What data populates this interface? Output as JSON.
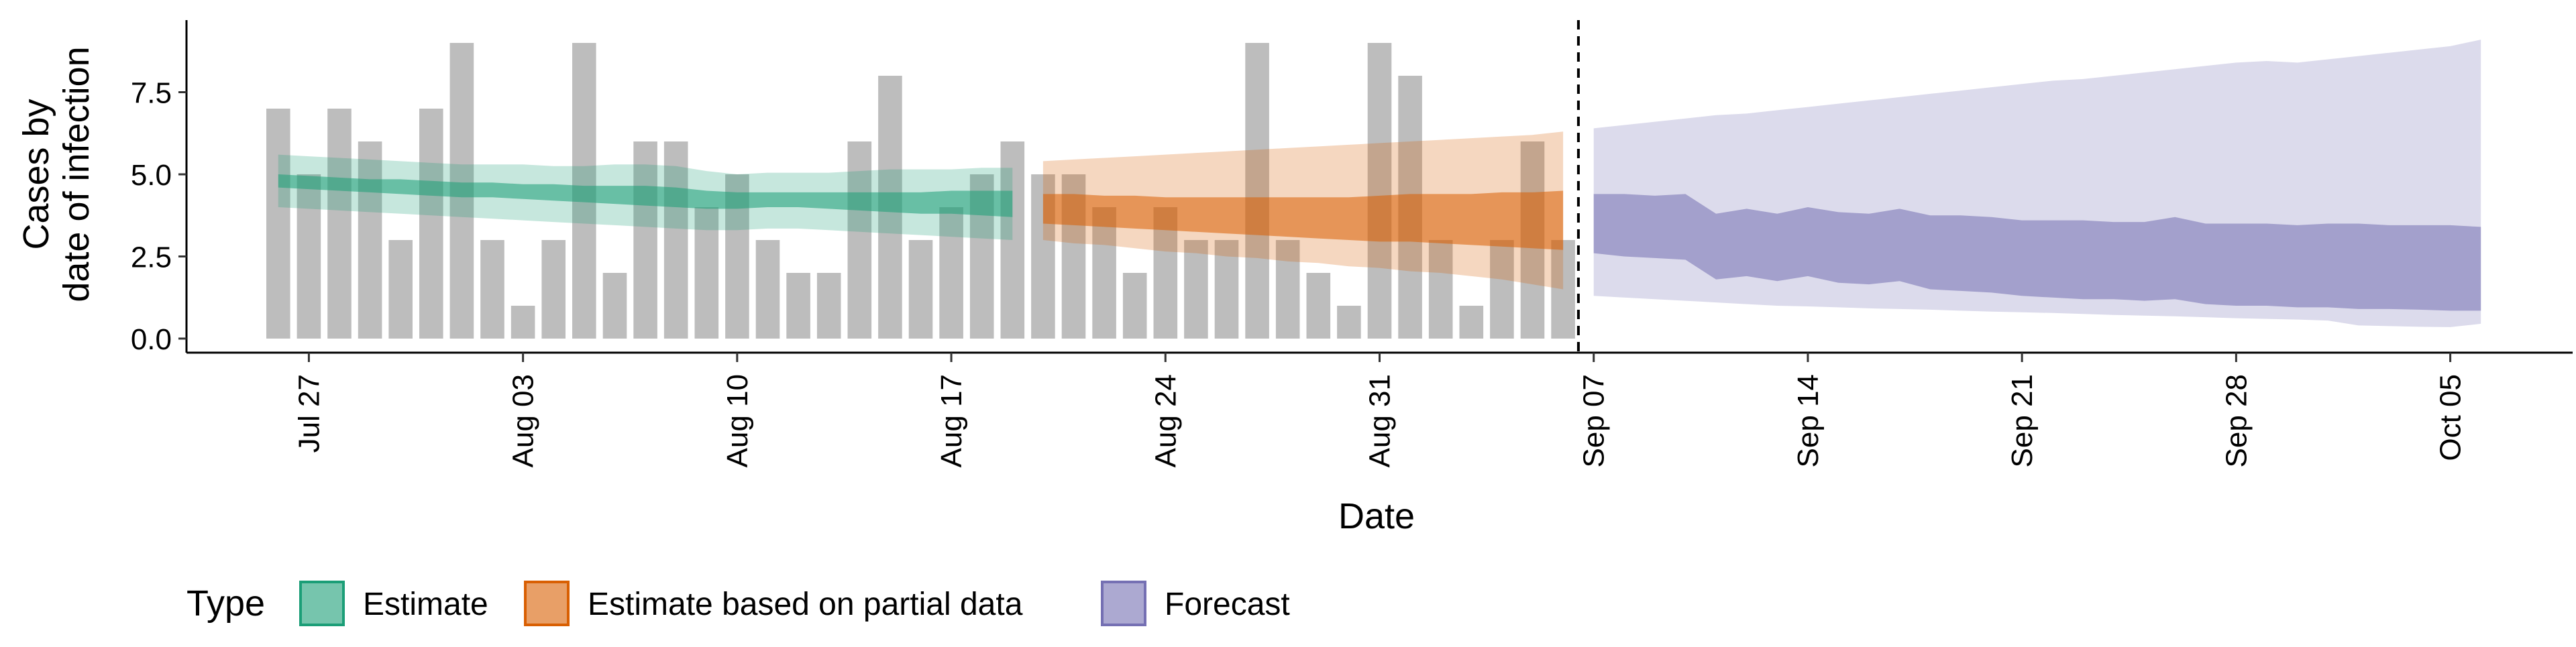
{
  "chart_data": {
    "type": "bar",
    "xlabel": "Date",
    "ylabel_lines": [
      "Cases by",
      "date of infection"
    ],
    "ylim": [
      0,
      9
    ],
    "y_ticks": [
      0.0,
      2.5,
      5.0,
      7.5
    ],
    "y_tick_labels": [
      "0.0",
      "2.5",
      "5.0",
      "7.5"
    ],
    "x_range": [
      "2020-07-23",
      "2020-10-09"
    ],
    "x_ticks": [
      "2020-07-27",
      "2020-08-03",
      "2020-08-10",
      "2020-08-17",
      "2020-08-24",
      "2020-08-31",
      "2020-09-07",
      "2020-09-14",
      "2020-09-21",
      "2020-09-28",
      "2020-10-05"
    ],
    "x_tick_labels": [
      "Jul 27",
      "Aug 03",
      "Aug 10",
      "Aug 17",
      "Aug 24",
      "Aug 31",
      "Sep 07",
      "Sep 14",
      "Sep 21",
      "Sep 28",
      "Oct 05"
    ],
    "bars": {
      "color": "#bdbdbd",
      "start_date": "2020-07-26",
      "end_date": "2020-09-06",
      "values": [
        7,
        5,
        7,
        6,
        3,
        7,
        9,
        3,
        1,
        3,
        9,
        2,
        6,
        6,
        4,
        5,
        3,
        2,
        2,
        6,
        8,
        3,
        4,
        5,
        6,
        5,
        5,
        4,
        2,
        4,
        3,
        3,
        9,
        3,
        2,
        1,
        9,
        8,
        3,
        1,
        3,
        6,
        3
      ]
    },
    "vline": {
      "date": "2020-09-06",
      "style": "dashed"
    },
    "series": [
      {
        "name": "Estimate",
        "color": "#1b9e77",
        "start_date": "2020-07-26",
        "end_date": "2020-08-19",
        "outer_lower": [
          4.0,
          3.95,
          3.9,
          3.85,
          3.8,
          3.75,
          3.7,
          3.65,
          3.6,
          3.55,
          3.5,
          3.45,
          3.4,
          3.35,
          3.3,
          3.3,
          3.35,
          3.35,
          3.3,
          3.25,
          3.2,
          3.15,
          3.1,
          3.05,
          3.0
        ],
        "outer_upper": [
          5.6,
          5.55,
          5.5,
          5.45,
          5.4,
          5.35,
          5.3,
          5.3,
          5.3,
          5.25,
          5.25,
          5.3,
          5.3,
          5.25,
          5.1,
          5.0,
          5.05,
          5.05,
          5.05,
          5.1,
          5.15,
          5.15,
          5.15,
          5.2,
          5.2
        ],
        "inner_lower": [
          4.6,
          4.55,
          4.5,
          4.45,
          4.4,
          4.35,
          4.3,
          4.3,
          4.25,
          4.2,
          4.15,
          4.1,
          4.05,
          4.0,
          3.95,
          3.95,
          4.0,
          4.0,
          3.95,
          3.9,
          3.85,
          3.8,
          3.8,
          3.75,
          3.7
        ],
        "inner_upper": [
          5.0,
          4.95,
          4.9,
          4.85,
          4.85,
          4.8,
          4.75,
          4.75,
          4.7,
          4.7,
          4.65,
          4.65,
          4.65,
          4.6,
          4.5,
          4.45,
          4.45,
          4.45,
          4.45,
          4.45,
          4.45,
          4.45,
          4.5,
          4.5,
          4.5
        ]
      },
      {
        "name": "Estimate based on partial data",
        "color": "#d95f02",
        "start_date": "2020-08-20",
        "end_date": "2020-09-06",
        "outer_lower": [
          3.0,
          2.9,
          2.85,
          2.75,
          2.65,
          2.6,
          2.5,
          2.45,
          2.35,
          2.3,
          2.2,
          2.15,
          2.05,
          2.0,
          1.9,
          1.8,
          1.65,
          1.5
        ],
        "outer_upper": [
          5.4,
          5.45,
          5.5,
          5.55,
          5.6,
          5.65,
          5.7,
          5.75,
          5.8,
          5.85,
          5.9,
          5.95,
          6.0,
          6.05,
          6.1,
          6.15,
          6.2,
          6.3
        ],
        "inner_lower": [
          3.5,
          3.45,
          3.4,
          3.35,
          3.3,
          3.25,
          3.2,
          3.15,
          3.1,
          3.05,
          3.0,
          2.95,
          2.95,
          2.9,
          2.85,
          2.8,
          2.75,
          2.7
        ],
        "inner_upper": [
          4.4,
          4.4,
          4.35,
          4.35,
          4.3,
          4.3,
          4.3,
          4.3,
          4.3,
          4.3,
          4.3,
          4.35,
          4.4,
          4.4,
          4.4,
          4.45,
          4.45,
          4.5
        ]
      },
      {
        "name": "Forecast",
        "color": "#7570b3",
        "start_date": "2020-09-07",
        "end_date": "2020-10-06",
        "outer_lower": [
          1.3,
          1.25,
          1.2,
          1.15,
          1.1,
          1.05,
          1.0,
          0.98,
          0.95,
          0.92,
          0.9,
          0.88,
          0.85,
          0.82,
          0.8,
          0.78,
          0.75,
          0.72,
          0.7,
          0.68,
          0.65,
          0.62,
          0.6,
          0.58,
          0.55,
          0.4,
          0.38,
          0.36,
          0.35,
          0.45
        ],
        "outer_upper": [
          6.4,
          6.5,
          6.6,
          6.7,
          6.8,
          6.85,
          6.95,
          7.05,
          7.15,
          7.25,
          7.35,
          7.45,
          7.55,
          7.65,
          7.75,
          7.85,
          7.9,
          8.0,
          8.1,
          8.2,
          8.3,
          8.4,
          8.45,
          8.4,
          8.5,
          8.6,
          8.7,
          8.8,
          8.9,
          9.1
        ],
        "inner_lower": [
          2.6,
          2.5,
          2.45,
          2.4,
          1.8,
          1.9,
          1.75,
          1.9,
          1.7,
          1.65,
          1.75,
          1.5,
          1.45,
          1.4,
          1.3,
          1.25,
          1.2,
          1.2,
          1.15,
          1.2,
          1.05,
          1.0,
          1.0,
          0.95,
          0.95,
          0.9,
          0.9,
          0.88,
          0.85,
          0.85
        ],
        "inner_upper": [
          4.4,
          4.4,
          4.35,
          4.4,
          3.8,
          3.95,
          3.8,
          4.0,
          3.85,
          3.8,
          3.95,
          3.75,
          3.75,
          3.7,
          3.6,
          3.6,
          3.6,
          3.55,
          3.55,
          3.7,
          3.5,
          3.5,
          3.5,
          3.45,
          3.5,
          3.5,
          3.45,
          3.45,
          3.45,
          3.4
        ]
      }
    ],
    "legend": {
      "position": "bottom-left",
      "title": "Type",
      "items": [
        "Estimate",
        "Estimate based on partial data",
        "Forecast"
      ]
    },
    "grid": false
  }
}
